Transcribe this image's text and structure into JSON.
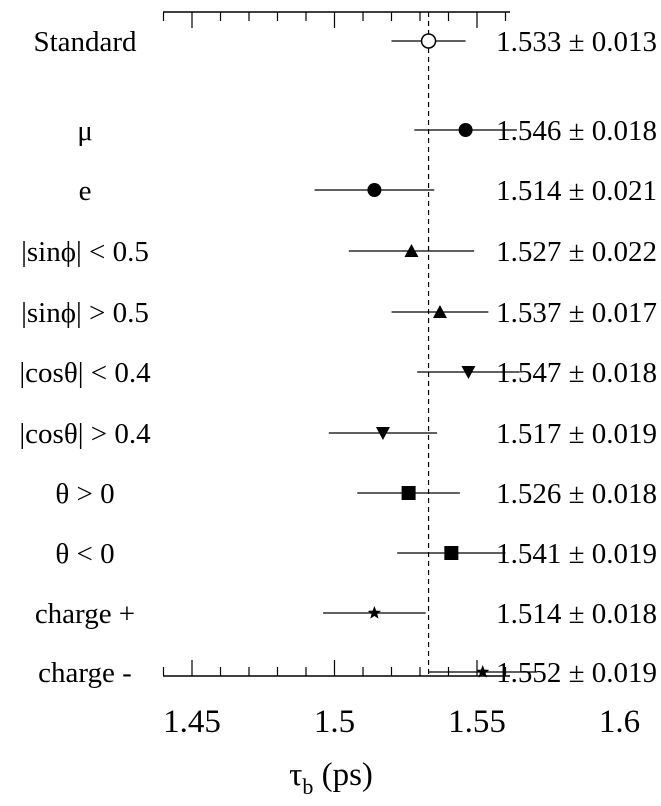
{
  "chart_data": {
    "type": "scatter",
    "xlabel": "τ_b (ps)",
    "xlabel_main": "τ",
    "xlabel_sub": "b",
    "xlabel_unit": " (ps)",
    "xlim": [
      1.43,
      1.62
    ],
    "xticks": [
      "1.45",
      "1.5",
      "1.55",
      "1.6"
    ],
    "reference_line": 1.533,
    "rows": [
      {
        "label": "Standard",
        "value": 1.533,
        "error": 0.013,
        "text": "1.533 ± 0.013",
        "marker": "open-circle"
      },
      {
        "label": "μ",
        "value": 1.546,
        "error": 0.018,
        "text": "1.546 ± 0.018",
        "marker": "circle"
      },
      {
        "label": "e",
        "value": 1.514,
        "error": 0.021,
        "text": "1.514 ± 0.021",
        "marker": "circle"
      },
      {
        "label": "|sinϕ| < 0.5",
        "value": 1.527,
        "error": 0.022,
        "text": "1.527 ± 0.022",
        "marker": "triangle-up"
      },
      {
        "label": "|sinϕ| > 0.5",
        "value": 1.537,
        "error": 0.017,
        "text": "1.537 ± 0.017",
        "marker": "triangle-up"
      },
      {
        "label": "|cosθ| < 0.4",
        "value": 1.547,
        "error": 0.018,
        "text": "1.547 ± 0.018",
        "marker": "triangle-down"
      },
      {
        "label": "|cosθ| > 0.4",
        "value": 1.517,
        "error": 0.019,
        "text": "1.517 ± 0.019",
        "marker": "triangle-down"
      },
      {
        "label": "θ > 0",
        "value": 1.526,
        "error": 0.018,
        "text": "1.526 ± 0.018",
        "marker": "square"
      },
      {
        "label": "θ < 0",
        "value": 1.541,
        "error": 0.019,
        "text": "1.541 ± 0.019",
        "marker": "square"
      },
      {
        "label": "charge +",
        "value": 1.514,
        "error": 0.018,
        "text": "1.514 ± 0.018",
        "marker": "star"
      },
      {
        "label": "charge -",
        "value": 1.552,
        "error": 0.019,
        "text": "1.552 ± 0.019",
        "marker": "star"
      }
    ]
  }
}
